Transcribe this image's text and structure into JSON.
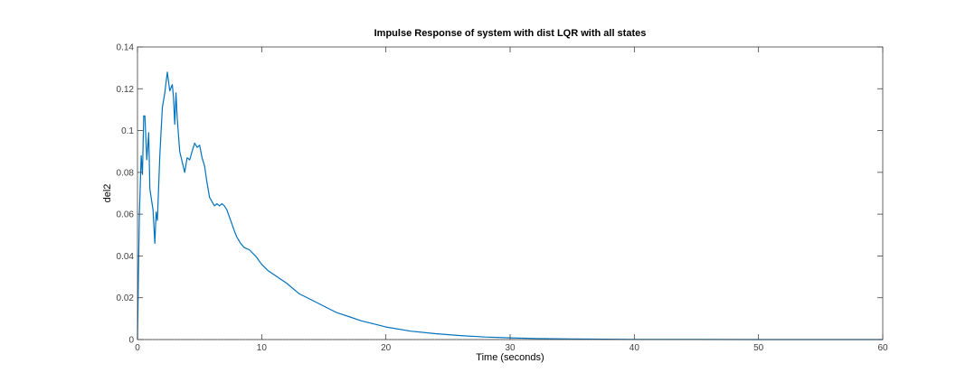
{
  "chart_data": {
    "type": "line",
    "title": "Impulse Response of system with dist LQR with all states",
    "xlabel": "Time (seconds)",
    "ylabel": "del2",
    "xlim": [
      0,
      60
    ],
    "ylim": [
      0,
      0.14
    ],
    "xticks": [
      0,
      10,
      20,
      30,
      40,
      50,
      60
    ],
    "xtick_labels": [
      "0",
      "10",
      "20",
      "30",
      "40",
      "50",
      "60"
    ],
    "yticks": [
      0,
      0.02,
      0.04,
      0.06,
      0.08,
      0.1,
      0.12,
      0.14
    ],
    "ytick_labels": [
      "0",
      "0.02",
      "0.04",
      "0.06",
      "0.08",
      "0.1",
      "0.12",
      "0.14"
    ],
    "grid": false,
    "legend": "none",
    "zero_line": true,
    "colors": {
      "series": "#0072bd",
      "axes": "#404040",
      "zero_line": "#555555"
    },
    "series": [
      {
        "x": [
          0,
          0.15,
          0.3,
          0.4,
          0.5,
          0.6,
          0.75,
          0.9,
          1.0,
          1.1,
          1.25,
          1.4,
          1.5,
          1.6,
          1.8,
          2.0,
          2.2,
          2.4,
          2.6,
          2.8,
          2.9,
          3.0,
          3.1,
          3.2,
          3.4,
          3.6,
          3.8,
          4.0,
          4.2,
          4.4,
          4.6,
          4.8,
          5.0,
          5.2,
          5.4,
          5.6,
          5.8,
          6.0,
          6.2,
          6.4,
          6.6,
          6.8,
          7.0,
          7.2,
          7.5,
          7.8,
          8.0,
          8.3,
          8.6,
          9.0,
          9.5,
          10,
          10.5,
          11,
          11.5,
          12,
          13,
          14,
          15,
          16,
          17,
          18,
          19,
          20,
          22,
          24,
          26,
          28,
          30,
          32,
          35,
          40,
          45,
          50,
          55,
          60
        ],
        "y": [
          0,
          0.06,
          0.088,
          0.079,
          0.107,
          0.107,
          0.086,
          0.099,
          0.072,
          0.068,
          0.062,
          0.046,
          0.061,
          0.057,
          0.088,
          0.111,
          0.118,
          0.128,
          0.119,
          0.122,
          0.116,
          0.103,
          0.118,
          0.106,
          0.09,
          0.085,
          0.08,
          0.087,
          0.086,
          0.09,
          0.094,
          0.092,
          0.093,
          0.087,
          0.083,
          0.075,
          0.068,
          0.066,
          0.064,
          0.065,
          0.064,
          0.065,
          0.064,
          0.062,
          0.057,
          0.052,
          0.049,
          0.046,
          0.044,
          0.043,
          0.04,
          0.036,
          0.033,
          0.031,
          0.029,
          0.027,
          0.022,
          0.019,
          0.016,
          0.013,
          0.011,
          0.009,
          0.0075,
          0.006,
          0.004,
          0.0028,
          0.0019,
          0.0012,
          0.0008,
          0.0005,
          0.0003,
          0.0001,
          5e-05,
          2e-05,
          1e-05,
          0
        ]
      }
    ]
  }
}
